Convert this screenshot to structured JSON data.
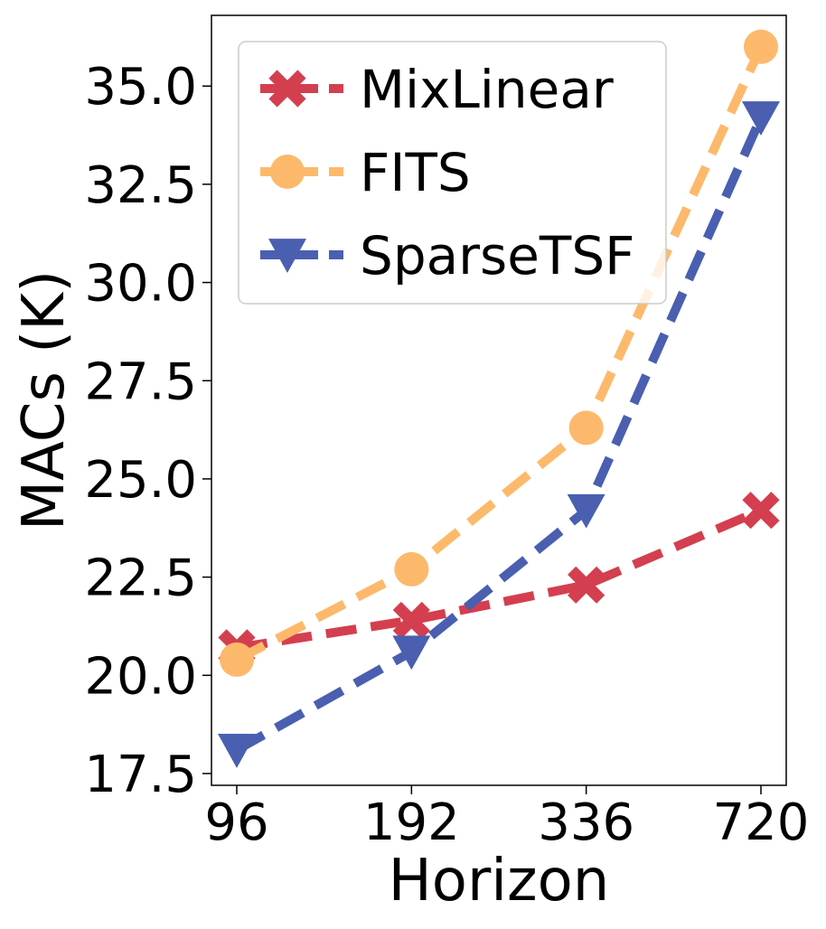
{
  "chart_data": {
    "type": "line",
    "x": [
      "96",
      "192",
      "336",
      "720"
    ],
    "xlabel": "Horizon",
    "ylabel": "MACs (K)",
    "ylim": [
      17.2,
      36.8
    ],
    "yticks": [
      "17.5",
      "20.0",
      "22.5",
      "25.0",
      "27.5",
      "30.0",
      "32.5",
      "35.0"
    ],
    "legend_position": "top-left",
    "series": [
      {
        "name": "MixLinear",
        "values": [
          20.7,
          21.4,
          22.3,
          24.2
        ],
        "color": "#d33f4f",
        "marker": "x"
      },
      {
        "name": "FITS",
        "values": [
          20.4,
          22.7,
          26.3,
          36.0
        ],
        "color": "#fdb96b",
        "marker": "o"
      },
      {
        "name": "SparseTSF",
        "values": [
          18.1,
          20.6,
          24.2,
          34.2
        ],
        "color": "#4a5fb0",
        "marker": "v"
      }
    ]
  }
}
